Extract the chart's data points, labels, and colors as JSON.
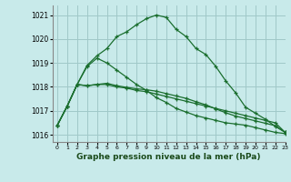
{
  "title": "",
  "xlabel": "Graphe pression niveau de la mer (hPa)",
  "background_color": "#c8eaea",
  "grid_color": "#a0c8c8",
  "line_color": "#1a6e2e",
  "ylim": [
    1015.7,
    1021.4
  ],
  "xlim": [
    -0.5,
    23
  ],
  "yticks": [
    1016,
    1017,
    1018,
    1019,
    1020,
    1021
  ],
  "xticks": [
    0,
    1,
    2,
    3,
    4,
    5,
    6,
    7,
    8,
    9,
    10,
    11,
    12,
    13,
    14,
    15,
    16,
    17,
    18,
    19,
    20,
    21,
    22,
    23
  ],
  "series": [
    [
      1016.4,
      1017.2,
      1018.1,
      1018.9,
      1019.3,
      1019.6,
      1020.1,
      1020.3,
      1020.6,
      1020.85,
      1021.0,
      1020.9,
      1020.4,
      1020.1,
      1019.6,
      1019.35,
      1018.85,
      1018.25,
      1017.75,
      1017.15,
      1016.9,
      1016.65,
      1016.35,
      1016.1
    ],
    [
      1016.4,
      1017.2,
      1018.1,
      1018.85,
      1019.2,
      1019.0,
      1018.7,
      1018.4,
      1018.1,
      1017.85,
      1017.55,
      1017.35,
      1017.1,
      1016.95,
      1016.8,
      1016.7,
      1016.6,
      1016.5,
      1016.45,
      1016.4,
      1016.3,
      1016.2,
      1016.1,
      1016.05
    ],
    [
      1016.4,
      1017.2,
      1018.1,
      1018.05,
      1018.1,
      1018.1,
      1018.0,
      1017.95,
      1017.85,
      1017.8,
      1017.7,
      1017.6,
      1017.5,
      1017.4,
      1017.3,
      1017.2,
      1017.1,
      1017.0,
      1016.9,
      1016.8,
      1016.7,
      1016.6,
      1016.5,
      1016.1
    ],
    [
      1016.4,
      1017.2,
      1018.1,
      1018.05,
      1018.1,
      1018.15,
      1018.05,
      1017.98,
      1017.92,
      1017.88,
      1017.82,
      1017.72,
      1017.62,
      1017.52,
      1017.38,
      1017.25,
      1017.08,
      1016.92,
      1016.78,
      1016.68,
      1016.58,
      1016.48,
      1016.38,
      1016.1
    ]
  ]
}
